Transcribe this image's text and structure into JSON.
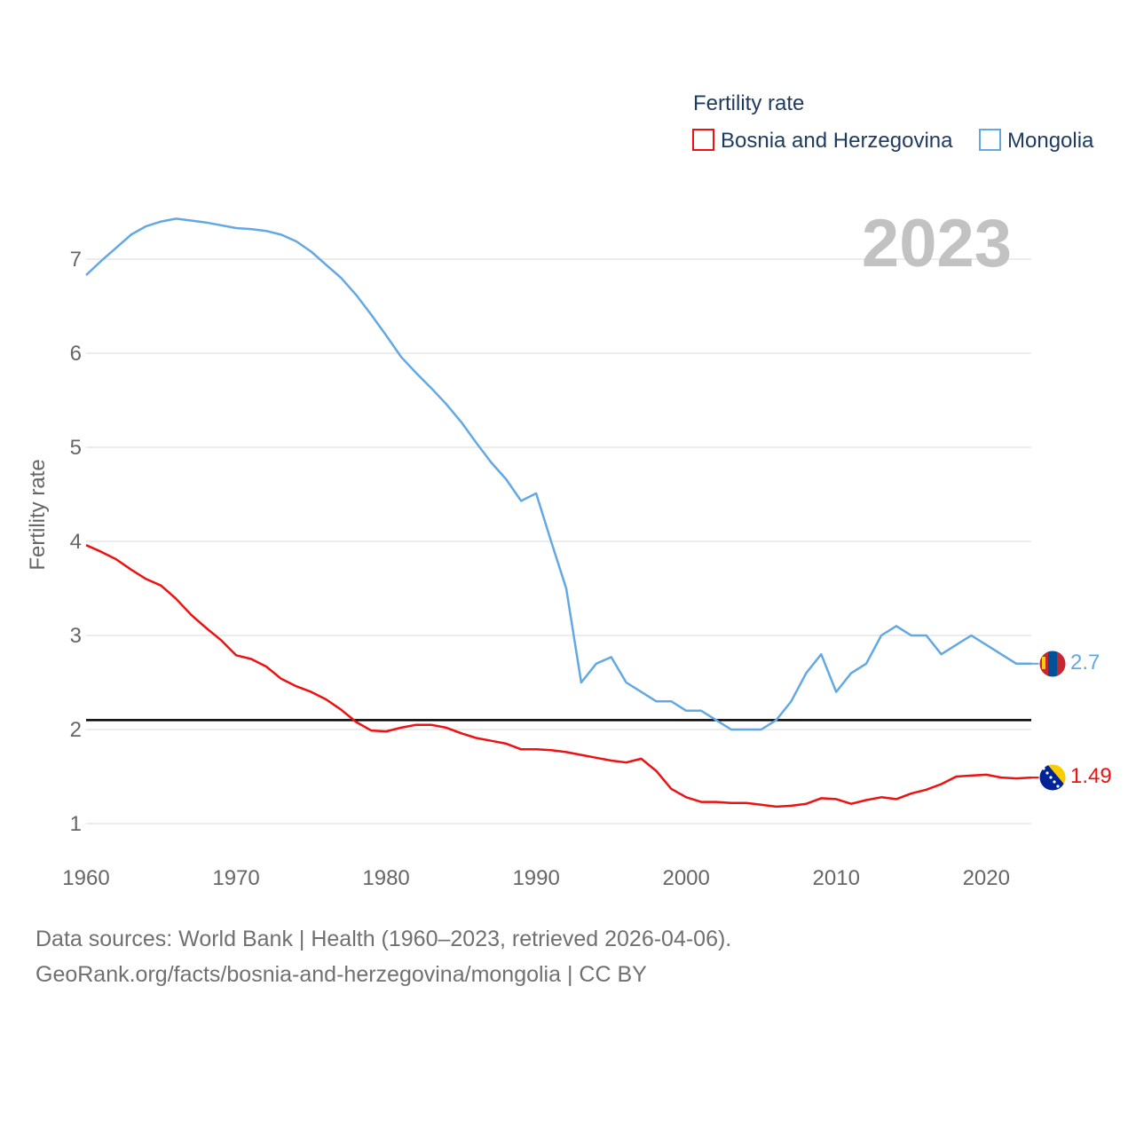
{
  "chart_data": {
    "type": "line",
    "legend_title": "Fertility rate",
    "ylabel": "Fertility rate",
    "year_label": "2023",
    "xlim": [
      1960,
      2023
    ],
    "ylim": [
      0.7,
      7.6
    ],
    "x_ticks": [
      "1960",
      "1970",
      "1980",
      "1990",
      "2000",
      "2010",
      "2020"
    ],
    "y_ticks": [
      "1",
      "2",
      "3",
      "4",
      "5",
      "6",
      "7"
    ],
    "reference_line": 2.1,
    "colors": {
      "bosnia": "#ee1111",
      "mongolia": "#62a8e5",
      "reference": "#000000",
      "grid": "#e6e6e6"
    },
    "x": [
      1960,
      1961,
      1962,
      1963,
      1964,
      1965,
      1966,
      1967,
      1968,
      1969,
      1970,
      1971,
      1972,
      1973,
      1974,
      1975,
      1976,
      1977,
      1978,
      1979,
      1980,
      1981,
      1982,
      1983,
      1984,
      1985,
      1986,
      1987,
      1988,
      1989,
      1990,
      1991,
      1992,
      1993,
      1994,
      1995,
      1996,
      1997,
      1998,
      1999,
      2000,
      2001,
      2002,
      2003,
      2004,
      2005,
      2006,
      2007,
      2008,
      2009,
      2010,
      2011,
      2012,
      2013,
      2014,
      2015,
      2016,
      2017,
      2018,
      2019,
      2020,
      2021,
      2022,
      2023
    ],
    "series": [
      {
        "name": "Bosnia and Herzegovina",
        "end_value": "1.49",
        "flag_icon": "bosnia-flag-icon",
        "values": [
          3.96,
          3.89,
          3.81,
          3.7,
          3.6,
          3.53,
          3.39,
          3.22,
          3.08,
          2.95,
          2.79,
          2.75,
          2.67,
          2.54,
          2.46,
          2.4,
          2.32,
          2.21,
          2.08,
          1.99,
          1.98,
          2.02,
          2.05,
          2.05,
          2.02,
          1.96,
          1.91,
          1.88,
          1.85,
          1.79,
          1.79,
          1.78,
          1.76,
          1.73,
          1.7,
          1.67,
          1.65,
          1.69,
          1.56,
          1.37,
          1.28,
          1.23,
          1.23,
          1.22,
          1.22,
          1.2,
          1.18,
          1.19,
          1.21,
          1.27,
          1.26,
          1.21,
          1.25,
          1.28,
          1.26,
          1.32,
          1.36,
          1.42,
          1.5,
          1.51,
          1.52,
          1.49,
          1.48,
          1.49
        ]
      },
      {
        "name": "Mongolia",
        "end_value": "2.7",
        "flag_icon": "mongolia-flag-icon",
        "values": [
          6.83,
          6.98,
          7.12,
          7.26,
          7.35,
          7.4,
          7.43,
          7.41,
          7.39,
          7.36,
          7.33,
          7.32,
          7.3,
          7.26,
          7.19,
          7.08,
          6.94,
          6.8,
          6.62,
          6.41,
          6.19,
          5.96,
          5.79,
          5.63,
          5.46,
          5.27,
          5.05,
          4.84,
          4.66,
          4.43,
          4.51,
          4.0,
          3.5,
          2.5,
          2.7,
          2.77,
          2.5,
          2.4,
          2.3,
          2.3,
          2.2,
          2.2,
          2.1,
          2.0,
          2.0,
          2.0,
          2.1,
          2.3,
          2.6,
          2.8,
          2.4,
          2.6,
          2.7,
          3.0,
          3.1,
          3.0,
          3.0,
          2.8,
          2.9,
          3.0,
          2.9,
          2.8,
          2.7,
          2.7
        ]
      }
    ]
  },
  "footer": {
    "line1": "Data sources: World Bank | Health (1960–2023, retrieved 2026-04-06).",
    "line2": "GeoRank.org/facts/bosnia-and-herzegovina/mongolia | CC BY"
  }
}
